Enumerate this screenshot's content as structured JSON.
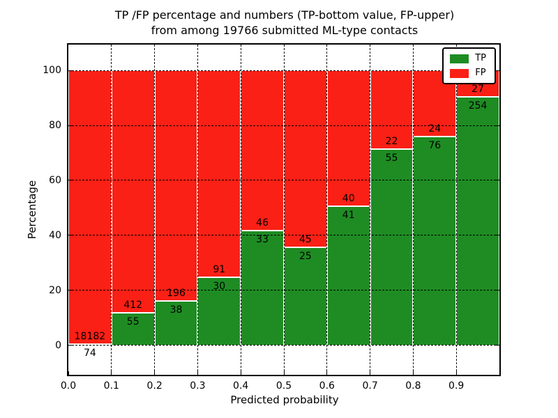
{
  "title": {
    "line1": "TP /FP percentage and numbers (TP-bottom value, FP-upper)",
    "line2": "from among 19766 submitted ML-type contacts"
  },
  "axes": {
    "xlabel": "Predicted probability",
    "ylabel": "Percentage"
  },
  "chart_data": {
    "type": "bar",
    "stacked": true,
    "normalized_to_percent": 100,
    "title": "TP /FP percentage and numbers (TP-bottom value, FP-upper) from among 19766 submitted ML-type contacts",
    "xlabel": "Predicted probability",
    "ylabel": "Percentage",
    "total_contacts": 19766,
    "categories": [
      "0.0-0.1",
      "0.1-0.2",
      "0.2-0.3",
      "0.3-0.4",
      "0.4-0.5",
      "0.5-0.6",
      "0.6-0.7",
      "0.7-0.8",
      "0.8-0.9",
      "0.9-1.0"
    ],
    "bin_width": 0.1,
    "series": [
      {
        "name": "TP",
        "color": "#1e8c23",
        "counts": [
          74,
          55,
          38,
          30,
          33,
          25,
          41,
          55,
          76,
          254
        ]
      },
      {
        "name": "FP",
        "color": "#fb2015",
        "counts": [
          18182,
          412,
          196,
          91,
          46,
          45,
          40,
          22,
          24,
          27
        ]
      }
    ],
    "tp_percent": [
      0.4,
      11.8,
      16.2,
      24.8,
      41.8,
      35.7,
      50.6,
      71.4,
      76.0,
      90.4
    ],
    "xticks": [
      "0.0",
      "0.1",
      "0.2",
      "0.3",
      "0.4",
      "0.5",
      "0.6",
      "0.7",
      "0.8",
      "0.9"
    ],
    "yticks": [
      0,
      20,
      40,
      60,
      80,
      100
    ],
    "xlim": [
      0.0,
      1.0
    ],
    "ylim": [
      -10.7,
      109.4
    ],
    "grid": "dashed-black-on-top",
    "bar_edge_color": "#ffffff",
    "legend_position": "upper right",
    "label_convention": "TP count below segment boundary, FP count above segment boundary"
  }
}
